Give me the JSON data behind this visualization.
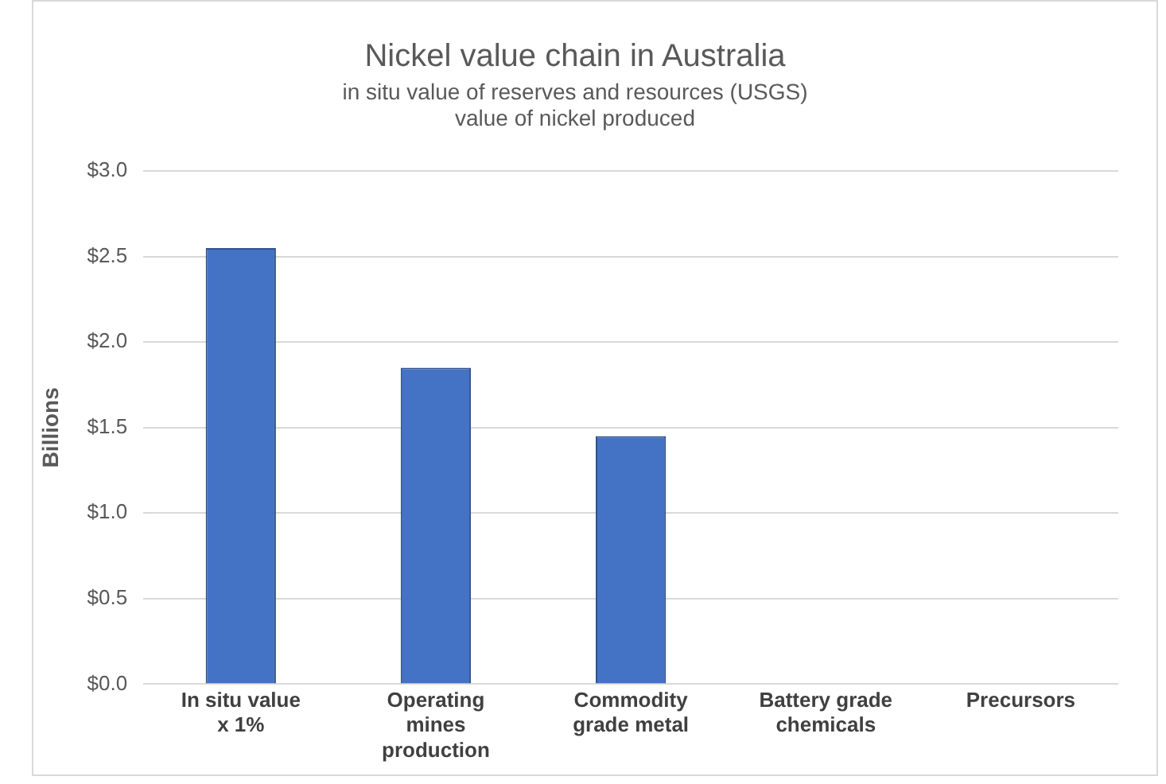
{
  "chart_data": {
    "type": "bar",
    "title": "Nickel value chain in Australia",
    "subtitle": "in situ value of reserves and resources (USGS)\nvalue of nickel produced",
    "ylabel": "Billions",
    "categories": [
      "In situ value x 1%",
      "Operating mines production",
      "Commodity grade metal",
      "Battery grade chemicals",
      "Precursors"
    ],
    "values": [
      2.55,
      1.85,
      1.45,
      0,
      0
    ],
    "color": "#4472c4",
    "ylim": [
      0,
      3
    ],
    "yticks": [
      {
        "value": 0,
        "label": "$0.0"
      },
      {
        "value": 0.5,
        "label": "$0.5"
      },
      {
        "value": 1,
        "label": "$1.0"
      },
      {
        "value": 1.5,
        "label": "$1.5"
      },
      {
        "value": 2,
        "label": "$2.0"
      },
      {
        "value": 2.5,
        "label": "$2.5"
      },
      {
        "value": 3,
        "label": "$3.0"
      }
    ],
    "grid": "y"
  }
}
